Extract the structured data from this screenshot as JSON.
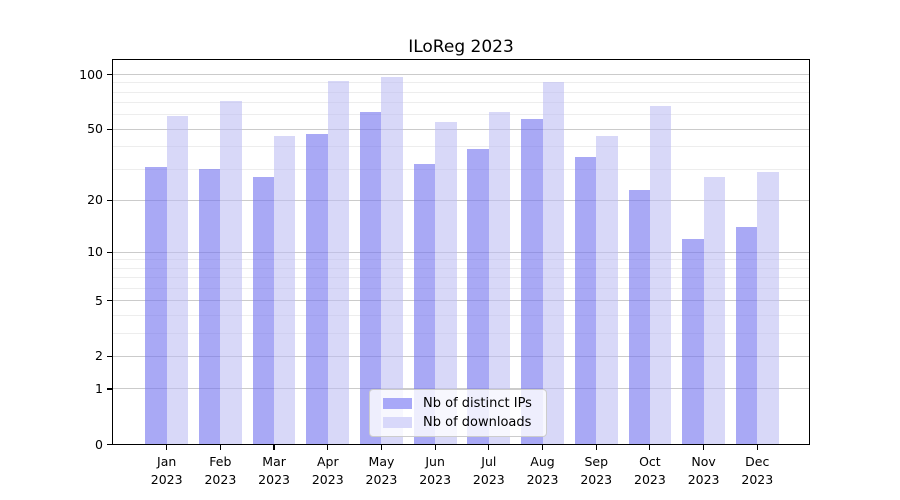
{
  "chart_data": {
    "type": "bar",
    "title": "ILoReg 2023",
    "categories": [
      "Jan",
      "Feb",
      "Mar",
      "Apr",
      "May",
      "Jun",
      "Jul",
      "Aug",
      "Sep",
      "Oct",
      "Nov",
      "Dec"
    ],
    "year": "2023",
    "series": [
      {
        "name": "Nb of distinct IPs",
        "color_hex": "#a8a8f8",
        "color_rgba": "rgba(116,116,239,0.62)",
        "values": [
          31,
          30,
          27,
          47,
          62,
          32,
          39,
          57,
          35,
          23,
          12,
          14
        ]
      },
      {
        "name": "Nb of downloads",
        "color_hex": "#d8d8fa",
        "color_rgba": "rgba(187,187,243,0.57)",
        "values": [
          59,
          72,
          46,
          92,
          97,
          55,
          62,
          91,
          46,
          67,
          27,
          29
        ]
      }
    ],
    "xlabel": "",
    "ylabel": "",
    "yscale": "log1p",
    "y_ticks": [
      100,
      50,
      20,
      10,
      5,
      2,
      1,
      0
    ],
    "y_minor_ticks": [
      90,
      80,
      70,
      60,
      40,
      30,
      9,
      8,
      7,
      6,
      4,
      3
    ],
    "ylim": [
      0,
      122
    ],
    "grid": "on",
    "legend_position": "lower center inside",
    "colors": {
      "grid_major": "#cbcbcb",
      "grid_minor": "#ededed",
      "spine": "#000000",
      "legend_border": "#cccccc"
    }
  }
}
